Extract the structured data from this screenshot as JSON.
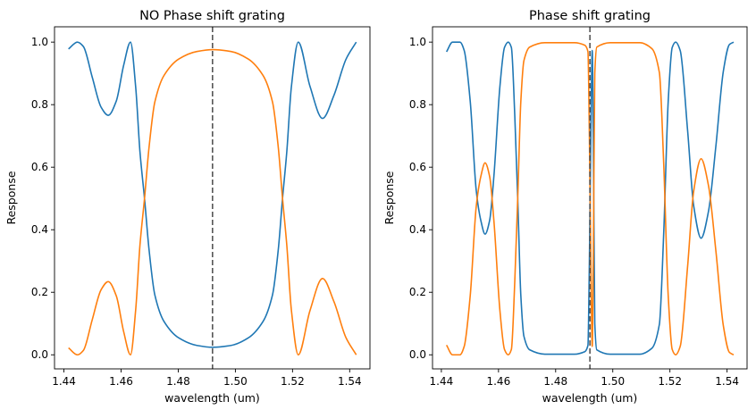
{
  "colors": {
    "series1": "#1f77b4",
    "series2": "#ff7f0e",
    "marker": "#555555"
  },
  "chart_data": [
    {
      "type": "line",
      "title": "NO Phase shift grating",
      "xlabel": "wavelength (um)",
      "ylabel": "Response",
      "xlim": [
        1.4367,
        1.5471
      ],
      "ylim": [
        -0.045,
        1.049
      ],
      "xticks": [
        "1.44",
        "1.46",
        "1.48",
        "1.50",
        "1.52",
        "1.54"
      ],
      "yticks": [
        "0.0",
        "0.2",
        "0.4",
        "0.6",
        "0.8",
        "1.0"
      ],
      "grid": false,
      "vline": 1.492,
      "x": [
        1.4416,
        1.4447,
        1.4468,
        1.4499,
        1.453,
        1.4555,
        1.4583,
        1.4609,
        1.4633,
        1.4651,
        1.4666,
        1.4682,
        1.4698,
        1.4718,
        1.475,
        1.4802,
        1.4865,
        1.4922,
        1.4985,
        1.5045,
        1.5097,
        1.513,
        1.515,
        1.5165,
        1.518,
        1.5196,
        1.522,
        1.5261,
        1.5305,
        1.5345,
        1.5387,
        1.5423
      ],
      "series": [
        {
          "name": "blue",
          "values": [
            0.978,
            1.0,
            0.986,
            0.888,
            0.792,
            0.766,
            0.811,
            0.926,
            1.0,
            0.857,
            0.65,
            0.5,
            0.335,
            0.192,
            0.107,
            0.054,
            0.03,
            0.024,
            0.03,
            0.054,
            0.107,
            0.192,
            0.335,
            0.5,
            0.65,
            0.857,
            1.0,
            0.859,
            0.756,
            0.83,
            0.945,
            1.0
          ]
        },
        {
          "name": "orange",
          "values": [
            0.022,
            0.0,
            0.014,
            0.112,
            0.208,
            0.234,
            0.189,
            0.074,
            0.0,
            0.143,
            0.35,
            0.5,
            0.665,
            0.808,
            0.893,
            0.946,
            0.97,
            0.976,
            0.97,
            0.946,
            0.893,
            0.808,
            0.665,
            0.5,
            0.35,
            0.143,
            0.0,
            0.141,
            0.244,
            0.17,
            0.055,
            0.0
          ]
        }
      ]
    },
    {
      "type": "line",
      "title": "Phase shift grating",
      "xlabel": "wavelength (um)",
      "ylabel": "Response",
      "xlim": [
        1.4369,
        1.547
      ],
      "ylim": [
        -0.045,
        1.049
      ],
      "xticks": [
        "1.44",
        "1.46",
        "1.48",
        "1.50",
        "1.52",
        "1.54"
      ],
      "yticks": [
        "0.0",
        "0.2",
        "0.4",
        "0.6",
        "0.8",
        "1.0"
      ],
      "grid": false,
      "vline": 1.492,
      "x": [
        1.4418,
        1.4439,
        1.4465,
        1.448,
        1.4501,
        1.4522,
        1.4538,
        1.4553,
        1.4569,
        1.4584,
        1.4605,
        1.4621,
        1.4634,
        1.4645,
        1.4657,
        1.4668,
        1.4678,
        1.4689,
        1.4709,
        1.4762,
        1.4866,
        1.4902,
        1.4913,
        1.4918,
        1.4924,
        1.4928,
        1.4932,
        1.4937,
        1.4944,
        1.4991,
        1.5095,
        1.5137,
        1.5163,
        1.5178,
        1.5194,
        1.5208,
        1.522,
        1.5236,
        1.5262,
        1.5283,
        1.5309,
        1.5335,
        1.5361,
        1.5387,
        1.5408,
        1.5423
      ],
      "series": [
        {
          "name": "blue",
          "values": [
            0.969,
            1.0,
            1.0,
            0.973,
            0.811,
            0.526,
            0.43,
            0.386,
            0.43,
            0.573,
            0.859,
            0.983,
            1.0,
            0.983,
            0.764,
            0.478,
            0.192,
            0.059,
            0.016,
            0.002,
            0.002,
            0.01,
            0.03,
            0.29,
            0.76,
            0.973,
            0.67,
            0.1,
            0.016,
            0.002,
            0.002,
            0.021,
            0.097,
            0.383,
            0.811,
            0.983,
            1.0,
            0.973,
            0.716,
            0.478,
            0.373,
            0.459,
            0.669,
            0.907,
            0.992,
            1.0
          ]
        },
        {
          "name": "orange",
          "values": [
            0.031,
            0,
            0,
            0.027,
            0.189,
            0.474,
            0.57,
            0.614,
            0.57,
            0.427,
            0.141,
            0.017,
            0,
            0.017,
            0.236,
            0.522,
            0.808,
            0.941,
            0.984,
            0.998,
            0.998,
            0.99,
            0.97,
            0.71,
            0.24,
            0.027,
            0.33,
            0.9,
            0.984,
            0.998,
            0.998,
            0.979,
            0.903,
            0.617,
            0.189,
            0.017,
            0,
            0.027,
            0.284,
            0.522,
            0.627,
            0.541,
            0.331,
            0.093,
            0.008,
            0
          ]
        }
      ]
    }
  ]
}
